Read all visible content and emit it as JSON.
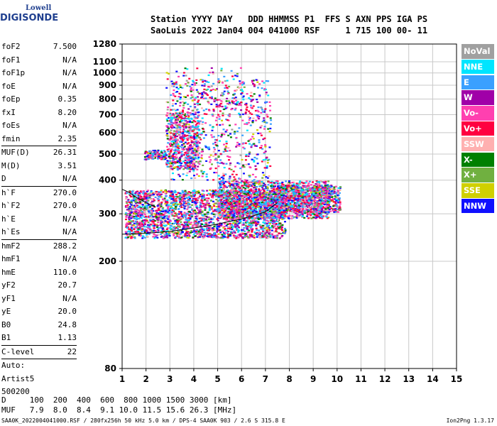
{
  "logo": {
    "brand_top": "Lowell",
    "brand_main": "DIGISONDE"
  },
  "header": {
    "line1": "Station YYYY DAY   DDD HHMMSS P1  FFS S AXN PPS IGA PS",
    "line2": "SaoLuis 2022 Jan04 004 041000 RSF     1 715 100 00- 11"
  },
  "params": [
    {
      "name": "foF2",
      "value": "7.500"
    },
    {
      "name": "foF1",
      "value": "N/A"
    },
    {
      "name": "foF1p",
      "value": "N/A"
    },
    {
      "name": "foE",
      "value": "N/A"
    },
    {
      "name": "foEp",
      "value": "0.35"
    },
    {
      "name": "fxI",
      "value": "8.20"
    },
    {
      "name": "foEs",
      "value": "N/A"
    },
    {
      "name": "fmin",
      "value": "2.35",
      "sep_after": true
    },
    {
      "name": "MUF(D)",
      "value": "26.31"
    },
    {
      "name": "M(D)",
      "value": "3.51"
    },
    {
      "name": "D",
      "value": "N/A",
      "sep_after": true
    },
    {
      "name": "h`F",
      "value": "270.0"
    },
    {
      "name": "h`F2",
      "value": "270.0"
    },
    {
      "name": "h`E",
      "value": "N/A"
    },
    {
      "name": "h`Es",
      "value": "N/A",
      "sep_after": true
    },
    {
      "name": "hmF2",
      "value": "288.2"
    },
    {
      "name": "hmF1",
      "value": "N/A"
    },
    {
      "name": "hmE",
      "value": "110.0"
    },
    {
      "name": "yF2",
      "value": "20.7"
    },
    {
      "name": "yF1",
      "value": "N/A"
    },
    {
      "name": "yE",
      "value": "20.0"
    },
    {
      "name": "B0",
      "value": "24.8"
    },
    {
      "name": "B1",
      "value": "1.13",
      "sep_after": true
    },
    {
      "name": "C-level",
      "value": "22",
      "sep_after": true
    },
    {
      "name": "Auto:",
      "value": ""
    },
    {
      "name": "Artist5",
      "value": ""
    },
    {
      "name": "500200",
      "value": ""
    }
  ],
  "legend": [
    {
      "label": "NoVal",
      "color": "#a0a0a0"
    },
    {
      "label": "NNE",
      "color": "#00e5ff"
    },
    {
      "label": "E",
      "color": "#3aa0ff"
    },
    {
      "label": "W",
      "color": "#a000a8"
    },
    {
      "label": "Vo-",
      "color": "#ff40b0"
    },
    {
      "label": "Vo+",
      "color": "#ff0040"
    },
    {
      "label": "SSW",
      "color": "#ffb0b0"
    },
    {
      "label": "X-",
      "color": "#008000"
    },
    {
      "label": "X+",
      "color": "#70b040"
    },
    {
      "label": "SSE",
      "color": "#d0d000"
    },
    {
      "label": "NNW",
      "color": "#1010ff"
    }
  ],
  "footer": {
    "line1": "D     100  200  400  600  800 1000 1500 3000 [km]",
    "line2": "MUF   7.9  8.0  8.4  9.1 10.0 11.5 15.6 26.3 [MHz]",
    "bottom": "SAA0K_2022004041000.RSF / 280fx256h 50 kHz 5.0 km / DPS-4 SAA0K 903 / 2.6 S 315.8 E",
    "version": "Ion2Png 1.3.17"
  },
  "chart_data": {
    "type": "scatter",
    "title": "",
    "xlabel": "",
    "ylabel": "",
    "xlim": [
      1,
      15
    ],
    "ylim": [
      80,
      1280
    ],
    "y_scale": "log",
    "x_ticks": [
      1,
      2,
      3,
      4,
      5,
      6,
      7,
      8,
      9,
      10,
      11,
      12,
      13,
      14,
      15
    ],
    "y_ticks": [
      80,
      200,
      300,
      400,
      500,
      600,
      700,
      800,
      900,
      1000,
      1100,
      1280
    ],
    "grid": true,
    "legend_position": "right",
    "trace": {
      "name": "",
      "x": [
        1.0,
        1.5,
        2.0,
        2.5,
        3.0,
        3.5,
        4.0,
        4.5,
        5.0,
        5.5,
        6.0,
        6.5,
        7.0,
        7.5
      ],
      "y": [
        252,
        253,
        254,
        256,
        258,
        262,
        266,
        270,
        275,
        281,
        287,
        295,
        305,
        330
      ]
    },
    "trace_upper": {
      "name": "",
      "x": [
        1.0,
        1.3,
        1.6,
        2.0,
        2.4
      ],
      "y": [
        370,
        360,
        345,
        330,
        318
      ]
    },
    "regions": [
      {
        "fmin": 1.1,
        "fmax": 7.8,
        "hmin": 245,
        "hmax": 370,
        "density": 2600
      },
      {
        "fmin": 5.0,
        "fmax": 9.6,
        "hmin": 290,
        "hmax": 400,
        "density": 1500
      },
      {
        "fmin": 7.5,
        "fmax": 10.1,
        "hmin": 305,
        "hmax": 385,
        "density": 700
      },
      {
        "fmin": 2.8,
        "fmax": 4.2,
        "hmin": 440,
        "hmax": 720,
        "density": 550
      },
      {
        "fmin": 1.9,
        "fmax": 2.8,
        "hmin": 480,
        "hmax": 520,
        "density": 120
      },
      {
        "fmin": 3.0,
        "fmax": 7.2,
        "hmin": 400,
        "hmax": 950,
        "density": 700
      },
      {
        "fmin": 2.8,
        "fmax": 6.0,
        "hmin": 700,
        "hmax": 1050,
        "density": 120
      }
    ]
  }
}
